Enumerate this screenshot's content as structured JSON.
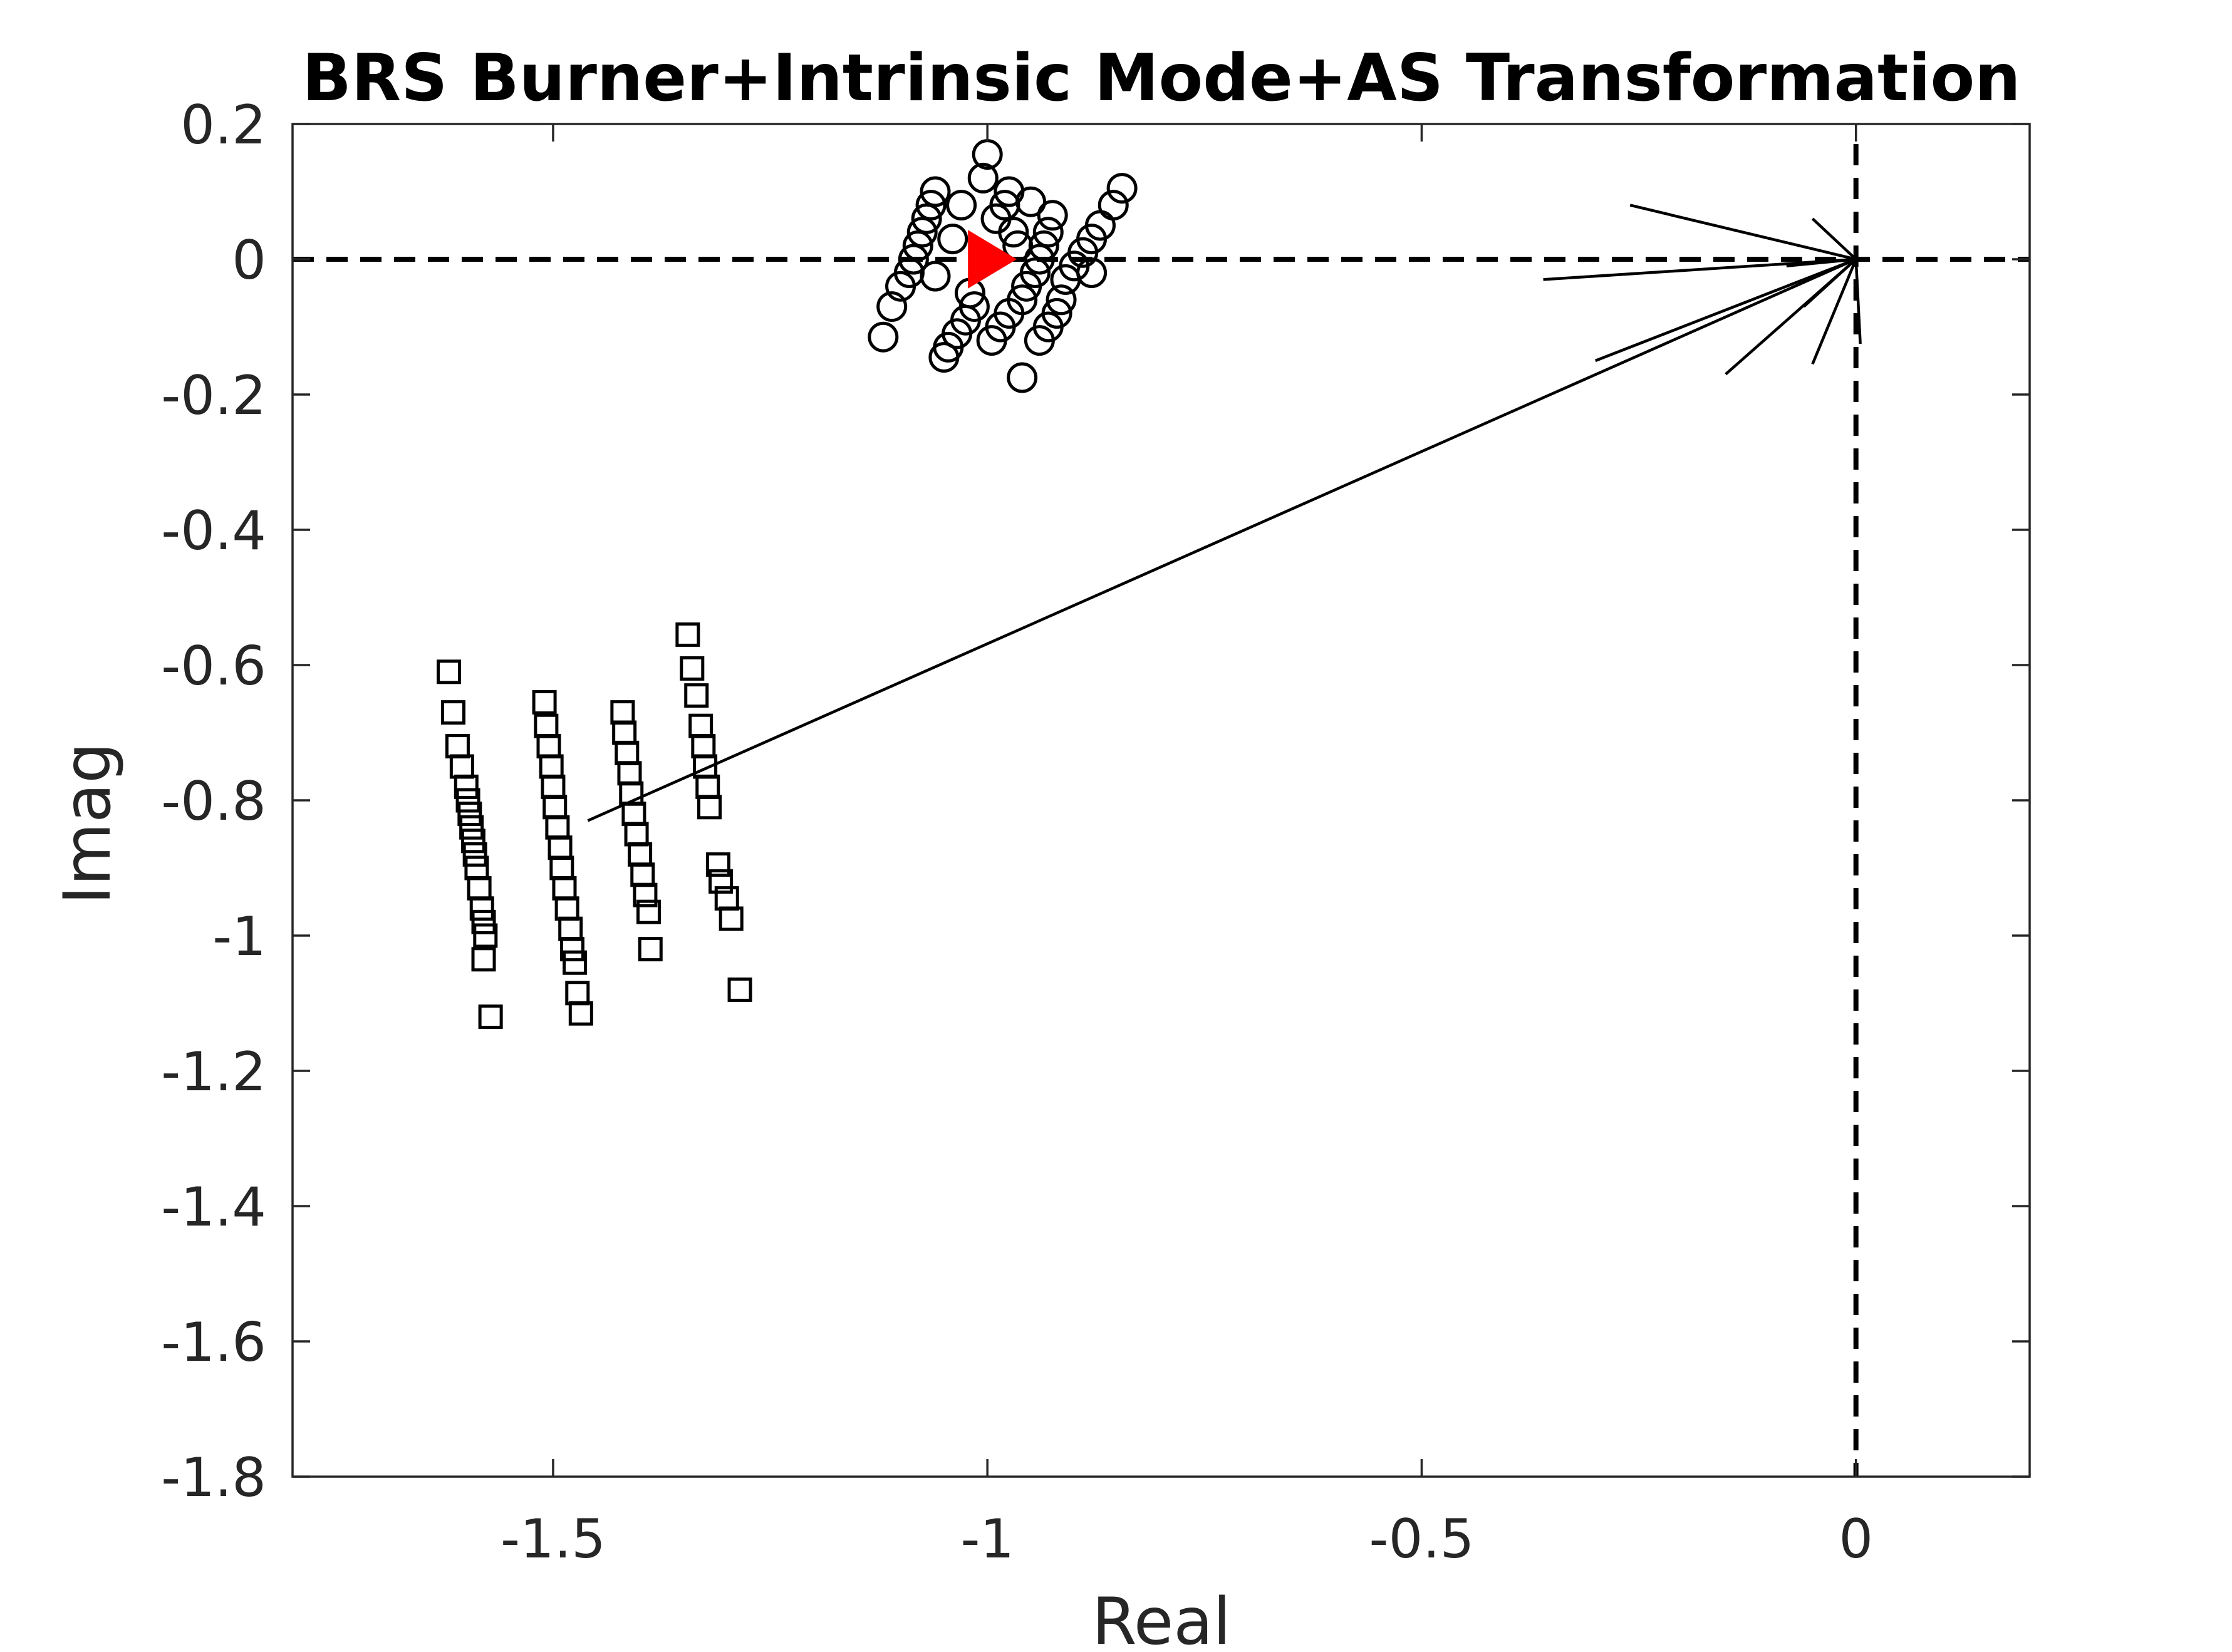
{
  "chart_data": {
    "type": "scatter",
    "title": "BRS Burner+Intrinsic Mode+AS Transformation",
    "xlabel": "Real",
    "ylabel": "Imag",
    "xlim": [
      -1.8,
      0.2
    ],
    "ylim": [
      -1.8,
      0.2
    ],
    "x_ticks": [
      -1.5,
      -1,
      -0.5,
      0
    ],
    "x_tick_labels": [
      "-1.5",
      "-1",
      "-0.5",
      "0"
    ],
    "y_ticks": [
      0.2,
      0,
      -0.2,
      -0.4,
      -0.6,
      -0.8,
      -1,
      -1.2,
      -1.4,
      -1.6,
      -1.8
    ],
    "y_tick_labels": [
      "0.2",
      "0",
      "-0.2",
      "-0.4",
      "-0.6",
      "-0.8",
      "-1",
      "-1.2",
      "-1.4",
      "-1.6",
      "-1.8"
    ],
    "grid": false,
    "reference_lines": [
      {
        "orientation": "horizontal",
        "value": 0,
        "style": "dashed"
      },
      {
        "orientation": "vertical",
        "value": 0,
        "style": "dashed"
      }
    ],
    "series": [
      {
        "marker": "circle",
        "color": "#000000",
        "points": [
          [
            -1.12,
            -0.115
          ],
          [
            -1.11,
            -0.07
          ],
          [
            -1.1,
            -0.04
          ],
          [
            -1.09,
            -0.02
          ],
          [
            -1.085,
            0.0
          ],
          [
            -1.08,
            0.02
          ],
          [
            -1.075,
            0.04
          ],
          [
            -1.07,
            0.06
          ],
          [
            -1.065,
            0.08
          ],
          [
            -1.06,
            0.1
          ],
          [
            -1.05,
            -0.145
          ],
          [
            -1.045,
            -0.13
          ],
          [
            -1.035,
            -0.11
          ],
          [
            -1.025,
            -0.09
          ],
          [
            -1.015,
            -0.07
          ],
          [
            -1.0,
            0.155
          ],
          [
            -1.005,
            0.12
          ],
          [
            -0.995,
            -0.12
          ],
          [
            -0.985,
            -0.1
          ],
          [
            -0.975,
            -0.08
          ],
          [
            -0.99,
            0.06
          ],
          [
            -0.98,
            0.08
          ],
          [
            -0.975,
            0.1
          ],
          [
            -0.965,
            0.02
          ],
          [
            -0.96,
            -0.175
          ],
          [
            -0.955,
            -0.04
          ],
          [
            -0.945,
            -0.02
          ],
          [
            -0.94,
            0.0
          ],
          [
            -0.935,
            0.02
          ],
          [
            -0.93,
            0.04
          ],
          [
            -0.925,
            0.065
          ],
          [
            -0.94,
            -0.12
          ],
          [
            -0.93,
            -0.1
          ],
          [
            -0.92,
            -0.08
          ],
          [
            -0.91,
            -0.03
          ],
          [
            -0.9,
            -0.01
          ],
          [
            -0.89,
            0.01
          ],
          [
            -0.88,
            0.03
          ],
          [
            -0.87,
            0.05
          ],
          [
            -0.855,
            0.08
          ],
          [
            -0.845,
            0.105
          ],
          [
            -1.06,
            -0.025
          ],
          [
            -1.04,
            0.03
          ],
          [
            -1.03,
            0.08
          ],
          [
            -1.02,
            -0.05
          ],
          [
            -0.97,
            0.04
          ],
          [
            -0.96,
            -0.06
          ],
          [
            -0.95,
            0.085
          ],
          [
            -0.915,
            -0.06
          ],
          [
            -0.88,
            -0.02
          ]
        ]
      },
      {
        "marker": "square",
        "color": "#000000",
        "points": [
          [
            -1.62,
            -0.61
          ],
          [
            -1.615,
            -0.67
          ],
          [
            -1.61,
            -0.72
          ],
          [
            -1.605,
            -0.75
          ],
          [
            -1.6,
            -0.78
          ],
          [
            -1.598,
            -0.8
          ],
          [
            -1.596,
            -0.82
          ],
          [
            -1.594,
            -0.84
          ],
          [
            -1.592,
            -0.86
          ],
          [
            -1.59,
            -0.88
          ],
          [
            -1.588,
            -0.9
          ],
          [
            -1.585,
            -0.93
          ],
          [
            -1.582,
            -0.96
          ],
          [
            -1.58,
            -0.98
          ],
          [
            -1.578,
            -1.0
          ],
          [
            -1.58,
            -1.035
          ],
          [
            -1.572,
            -1.12
          ],
          [
            -1.51,
            -0.655
          ],
          [
            -1.508,
            -0.69
          ],
          [
            -1.505,
            -0.72
          ],
          [
            -1.502,
            -0.75
          ],
          [
            -1.5,
            -0.78
          ],
          [
            -1.498,
            -0.81
          ],
          [
            -1.495,
            -0.84
          ],
          [
            -1.492,
            -0.87
          ],
          [
            -1.49,
            -0.9
          ],
          [
            -1.487,
            -0.93
          ],
          [
            -1.484,
            -0.96
          ],
          [
            -1.48,
            -0.99
          ],
          [
            -1.478,
            -1.02
          ],
          [
            -1.475,
            -1.04
          ],
          [
            -1.472,
            -1.085
          ],
          [
            -1.468,
            -1.115
          ],
          [
            -1.42,
            -0.67
          ],
          [
            -1.418,
            -0.7
          ],
          [
            -1.415,
            -0.73
          ],
          [
            -1.412,
            -0.76
          ],
          [
            -1.41,
            -0.79
          ],
          [
            -1.407,
            -0.82
          ],
          [
            -1.404,
            -0.85
          ],
          [
            -1.4,
            -0.88
          ],
          [
            -1.397,
            -0.91
          ],
          [
            -1.394,
            -0.94
          ],
          [
            -1.39,
            -0.965
          ],
          [
            -1.388,
            -1.02
          ],
          [
            -1.345,
            -0.555
          ],
          [
            -1.34,
            -0.605
          ],
          [
            -1.335,
            -0.645
          ],
          [
            -1.33,
            -0.69
          ],
          [
            -1.327,
            -0.72
          ],
          [
            -1.325,
            -0.75
          ],
          [
            -1.322,
            -0.78
          ],
          [
            -1.32,
            -0.81
          ],
          [
            -1.31,
            -0.895
          ],
          [
            -1.307,
            -0.92
          ],
          [
            -1.3,
            -0.945
          ],
          [
            -1.295,
            -0.975
          ],
          [
            -1.285,
            -1.08
          ]
        ]
      },
      {
        "marker": "triangle-right",
        "color": "#ff0000",
        "points": [
          [
            -1.0,
            0.0
          ]
        ]
      }
    ],
    "arrows": [
      {
        "from": [
          -1.46,
          -0.83
        ],
        "to": [
          0.0,
          0.0
        ]
      },
      {
        "from": [
          -0.26,
          0.08
        ],
        "to": [
          0.0,
          0.0
        ]
      },
      {
        "from": [
          -0.36,
          -0.03
        ],
        "to": [
          0.0,
          0.0
        ]
      },
      {
        "from": [
          -0.3,
          -0.15
        ],
        "to": [
          0.0,
          0.0
        ]
      },
      {
        "from": [
          -0.15,
          -0.17
        ],
        "to": [
          0.0,
          0.0
        ]
      },
      {
        "from": [
          -0.05,
          0.06
        ],
        "to": [
          0.0,
          0.0
        ]
      },
      {
        "from": [
          -0.06,
          -0.07
        ],
        "to": [
          0.0,
          0.0
        ]
      },
      {
        "from": [
          -0.05,
          -0.155
        ],
        "to": [
          0.0,
          0.0
        ]
      },
      {
        "from": [
          0.005,
          -0.125
        ],
        "to": [
          0.0,
          0.0
        ]
      },
      {
        "from": [
          -0.08,
          -0.01
        ],
        "to": [
          0.0,
          0.0
        ]
      }
    ]
  }
}
